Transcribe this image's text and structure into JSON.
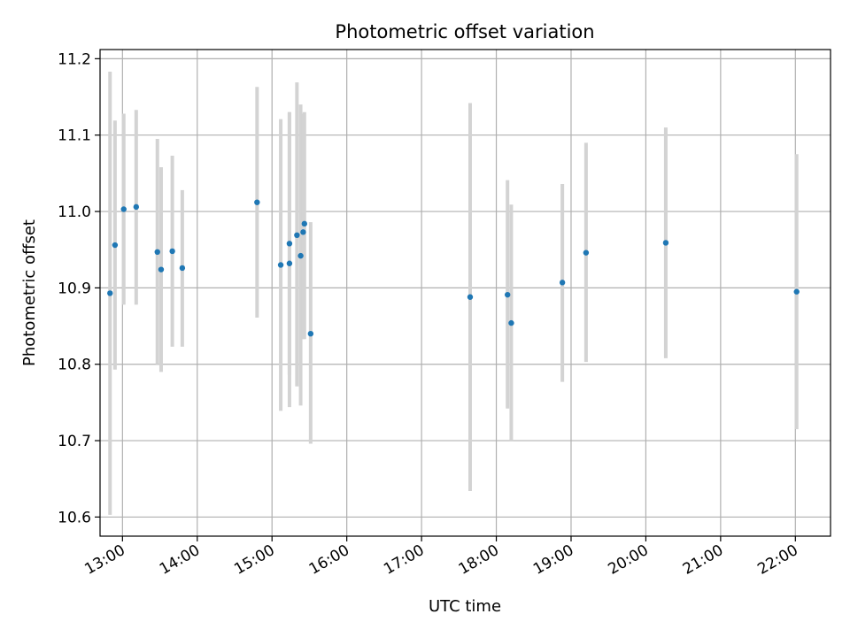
{
  "chart_data": {
    "type": "scatter",
    "title": "Photometric offset variation",
    "xlabel": "UTC time",
    "ylabel": "Photometric offset",
    "grid": true,
    "xlim_hours": [
      12.7,
      22.47
    ],
    "ylim": [
      10.575,
      11.212
    ],
    "x_ticks": [
      {
        "hour": 13,
        "label": "13:00"
      },
      {
        "hour": 14,
        "label": "14:00"
      },
      {
        "hour": 15,
        "label": "15:00"
      },
      {
        "hour": 16,
        "label": "16:00"
      },
      {
        "hour": 17,
        "label": "17:00"
      },
      {
        "hour": 18,
        "label": "18:00"
      },
      {
        "hour": 19,
        "label": "19:00"
      },
      {
        "hour": 20,
        "label": "20:00"
      },
      {
        "hour": 21,
        "label": "21:00"
      },
      {
        "hour": 22,
        "label": "22:00"
      }
    ],
    "y_ticks": [
      {
        "value": 10.6,
        "label": "10.6"
      },
      {
        "value": 10.7,
        "label": "10.7"
      },
      {
        "value": 10.8,
        "label": "10.8"
      },
      {
        "value": 10.9,
        "label": "10.9"
      },
      {
        "value": 11.0,
        "label": "11.0"
      },
      {
        "value": 11.1,
        "label": "11.1"
      },
      {
        "value": 11.2,
        "label": "11.2"
      }
    ],
    "marker_color": "#1f77b4",
    "errorbar_color": "#d3d3d3",
    "grid_color": "#b0b0b0",
    "points": [
      {
        "time": "12:50",
        "y": 10.893,
        "yerr_low": 10.603,
        "yerr_high": 11.183
      },
      {
        "time": "12:54",
        "y": 10.956,
        "yerr_low": 10.793,
        "yerr_high": 11.119
      },
      {
        "time": "13:01",
        "y": 11.003,
        "yerr_low": 10.878,
        "yerr_high": 11.128
      },
      {
        "time": "13:11",
        "y": 11.006,
        "yerr_low": 10.878,
        "yerr_high": 11.133
      },
      {
        "time": "13:28",
        "y": 10.947,
        "yerr_low": 10.8,
        "yerr_high": 11.095
      },
      {
        "time": "13:31",
        "y": 10.924,
        "yerr_low": 10.79,
        "yerr_high": 11.058
      },
      {
        "time": "13:40",
        "y": 10.948,
        "yerr_low": 10.823,
        "yerr_high": 11.073
      },
      {
        "time": "13:48",
        "y": 10.926,
        "yerr_low": 10.823,
        "yerr_high": 11.028
      },
      {
        "time": "14:48",
        "y": 11.012,
        "yerr_low": 10.861,
        "yerr_high": 11.163
      },
      {
        "time": "15:07",
        "y": 10.93,
        "yerr_low": 10.739,
        "yerr_high": 11.121
      },
      {
        "time": "15:14",
        "y": 10.932,
        "yerr_low": 10.744,
        "yerr_high": 11.13
      },
      {
        "time": "15:14",
        "y": 10.958,
        "yerr_low": 10.786,
        "yerr_high": 11.13
      },
      {
        "time": "15:20",
        "y": 10.969,
        "yerr_low": 10.771,
        "yerr_high": 11.169
      },
      {
        "time": "15:23",
        "y": 10.942,
        "yerr_low": 10.746,
        "yerr_high": 11.14
      },
      {
        "time": "15:25",
        "y": 10.973,
        "yerr_low": 10.833,
        "yerr_high": 11.128
      },
      {
        "time": "15:26",
        "y": 10.984,
        "yerr_low": 10.833,
        "yerr_high": 11.13
      },
      {
        "time": "15:31",
        "y": 10.84,
        "yerr_low": 10.696,
        "yerr_high": 10.986
      },
      {
        "time": "17:39",
        "y": 10.888,
        "yerr_low": 10.634,
        "yerr_high": 11.142
      },
      {
        "time": "18:09",
        "y": 10.891,
        "yerr_low": 10.742,
        "yerr_high": 11.041
      },
      {
        "time": "18:12",
        "y": 10.854,
        "yerr_low": 10.7,
        "yerr_high": 11.009
      },
      {
        "time": "18:53",
        "y": 10.907,
        "yerr_low": 10.777,
        "yerr_high": 11.036
      },
      {
        "time": "19:12",
        "y": 10.946,
        "yerr_low": 10.803,
        "yerr_high": 11.09
      },
      {
        "time": "20:16",
        "y": 10.959,
        "yerr_low": 10.808,
        "yerr_high": 11.11
      },
      {
        "time": "22:01",
        "y": 10.895,
        "yerr_low": 10.715,
        "yerr_high": 11.075
      }
    ]
  }
}
